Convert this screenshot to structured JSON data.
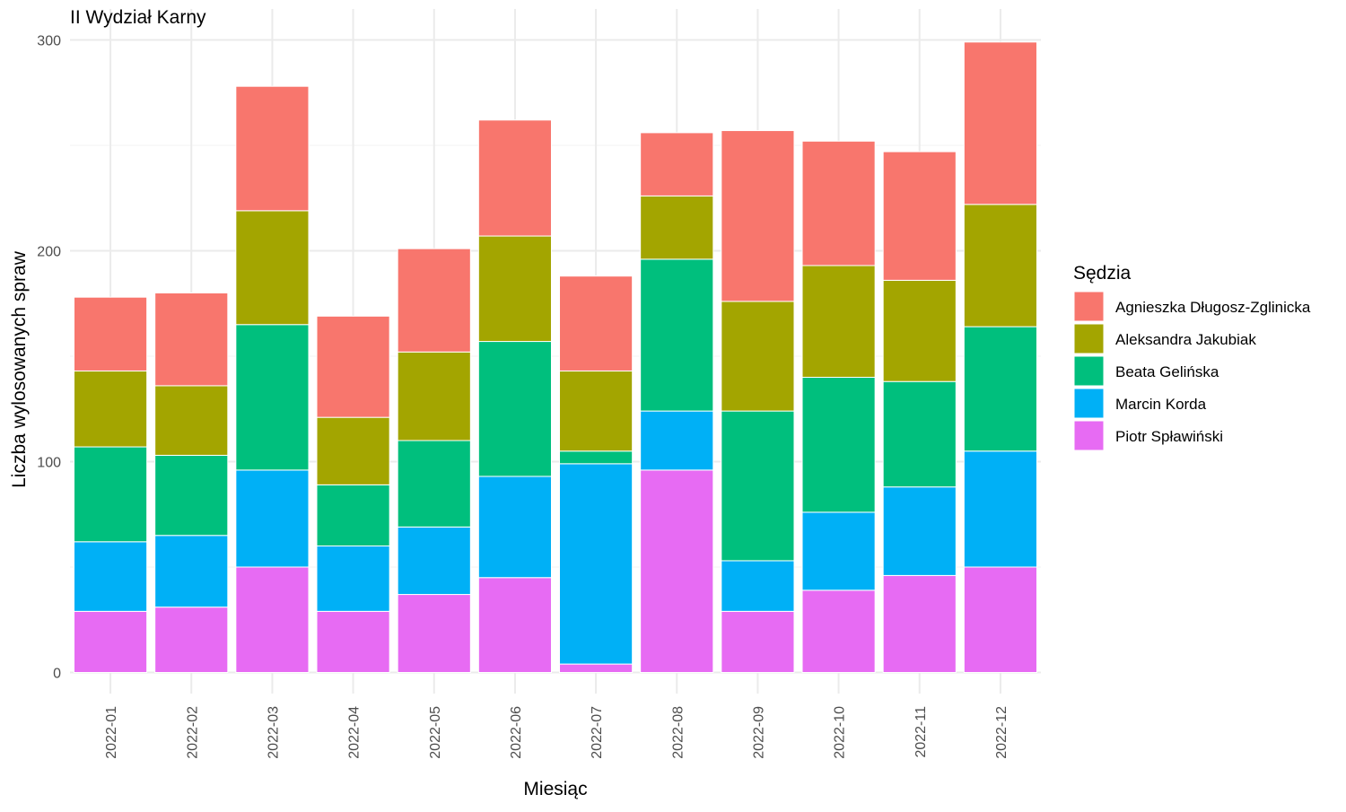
{
  "chart_data": {
    "type": "bar",
    "stacked": true,
    "title": "II Wydział Karny",
    "xlabel": "Miesiąc",
    "ylabel": "Liczba wylosowanych spraw",
    "ylim": [
      0,
      300
    ],
    "yticks": [
      "0",
      "100",
      "200",
      "300"
    ],
    "grid": true,
    "legend_position": "right",
    "legend_title": "Sędzia",
    "categories": [
      "2022-01",
      "2022-02",
      "2022-03",
      "2022-04",
      "2022-05",
      "2022-06",
      "2022-07",
      "2022-08",
      "2022-09",
      "2022-10",
      "2022-11",
      "2022-12"
    ],
    "series": [
      {
        "name": "Piotr Spławiński",
        "color": "#E76BF3",
        "values": [
          29,
          31,
          50,
          29,
          37,
          45,
          4,
          96,
          29,
          39,
          46,
          50
        ]
      },
      {
        "name": "Marcin Korda",
        "color": "#00B0F6",
        "values": [
          33,
          34,
          46,
          31,
          32,
          48,
          95,
          28,
          24,
          37,
          42,
          55
        ]
      },
      {
        "name": "Beata Gelińska",
        "color": "#00BF7D",
        "values": [
          45,
          38,
          69,
          29,
          41,
          64,
          6,
          72,
          71,
          64,
          50,
          59
        ]
      },
      {
        "name": "Aleksandra Jakubiak",
        "color": "#A3A500",
        "values": [
          36,
          33,
          54,
          32,
          42,
          50,
          38,
          30,
          52,
          53,
          48,
          58
        ]
      },
      {
        "name": "Agnieszka Długosz-Zglinicka",
        "color": "#F8766D",
        "values": [
          35,
          44,
          59,
          48,
          49,
          55,
          45,
          30,
          81,
          59,
          61,
          77
        ]
      }
    ],
    "legend_order": [
      "Agnieszka Długosz-Zglinicka",
      "Aleksandra Jakubiak",
      "Beata Gelińska",
      "Marcin Korda",
      "Piotr Spławiński"
    ]
  }
}
